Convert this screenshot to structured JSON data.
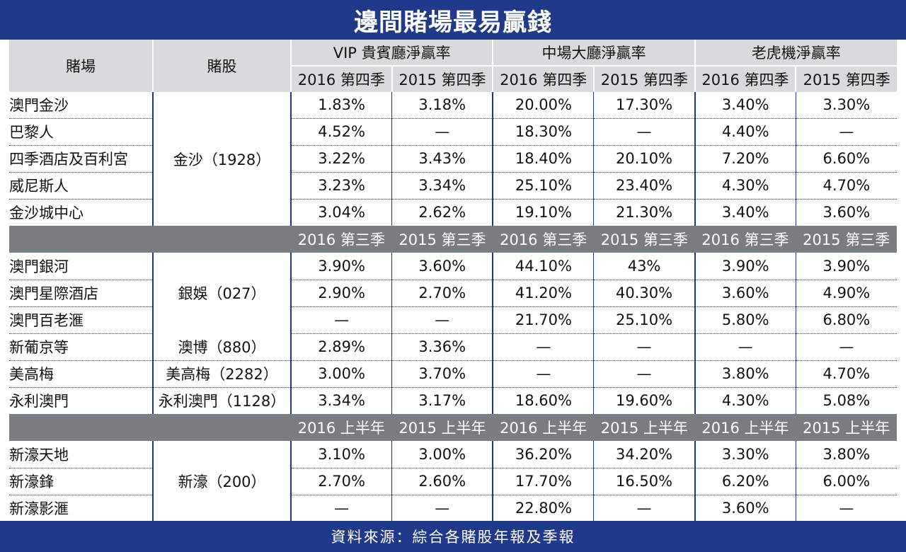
{
  "title": "邊間賭場最易贏錢",
  "footer": "資料來源：綜合各賭股年報及季報",
  "header": {
    "venue": "賭場",
    "stock": "賭股",
    "groups": [
      "VIP 貴賓廳淨贏率",
      "中場大廳淨贏率",
      "老虎機淨贏率"
    ],
    "periods": [
      "2016 第四季",
      "2015 第四季",
      "2016 第四季",
      "2015 第四季",
      "2016 第四季",
      "2015 第四季"
    ]
  },
  "sections": [
    {
      "periods": [
        "2016 第三季",
        "2015 第三季",
        "2016 第三季",
        "2015 第三季",
        "2016 第三季",
        "2015 第三季"
      ]
    },
    {
      "periods": [
        "2016 上半年",
        "2015 上半年",
        "2016 上半年",
        "2015 上半年",
        "2016 上半年",
        "2015 上半年"
      ]
    }
  ],
  "rows": [
    {
      "venue": "澳門金沙",
      "values": [
        "1.83%",
        "3.18%",
        "20.00%",
        "17.30%",
        "3.40%",
        "3.30%"
      ]
    },
    {
      "venue": "巴黎人",
      "values": [
        "4.52%",
        "—",
        "18.30%",
        "—",
        "4.40%",
        "—"
      ]
    },
    {
      "venue": "四季酒店及百利宮",
      "values": [
        "3.22%",
        "3.43%",
        "18.40%",
        "20.10%",
        "7.20%",
        "6.60%"
      ]
    },
    {
      "venue": "威尼斯人",
      "values": [
        "3.23%",
        "3.34%",
        "25.10%",
        "23.40%",
        "4.30%",
        "4.70%"
      ]
    },
    {
      "venue": "金沙城中心",
      "values": [
        "3.04%",
        "2.62%",
        "19.10%",
        "21.30%",
        "3.40%",
        "3.60%"
      ]
    },
    {
      "venue": "澳門銀河",
      "values": [
        "3.90%",
        "3.60%",
        "44.10%",
        "43%",
        "3.90%",
        "3.90%"
      ]
    },
    {
      "venue": "澳門星際酒店",
      "values": [
        "2.90%",
        "2.70%",
        "41.20%",
        "40.30%",
        "3.60%",
        "4.90%"
      ]
    },
    {
      "venue": "澳門百老滙",
      "values": [
        "—",
        "—",
        "21.70%",
        "25.10%",
        "5.80%",
        "6.80%"
      ]
    },
    {
      "venue": "新葡京等",
      "values": [
        "2.89%",
        "3.36%",
        "—",
        "—",
        "—",
        "—"
      ]
    },
    {
      "venue": "美高梅",
      "values": [
        "3.00%",
        "3.70%",
        "—",
        "—",
        "3.80%",
        "4.70%"
      ]
    },
    {
      "venue": "永利澳門",
      "values": [
        "3.34%",
        "3.17%",
        "18.60%",
        "19.60%",
        "4.30%",
        "5.08%"
      ]
    },
    {
      "venue": "新濠天地",
      "values": [
        "3.10%",
        "3.00%",
        "36.20%",
        "34.20%",
        "3.30%",
        "3.80%"
      ]
    },
    {
      "venue": "新濠鋒",
      "values": [
        "2.70%",
        "2.60%",
        "17.70%",
        "16.50%",
        "6.20%",
        "6.00%"
      ]
    },
    {
      "venue": "新濠影滙",
      "values": [
        "—",
        "—",
        "22.80%",
        "—",
        "3.60%",
        "—"
      ]
    }
  ],
  "stocks": [
    "金沙（1928）",
    "銀娛（027）",
    "澳博（880）",
    "美高梅（2282）",
    "永利澳門（1128）",
    "新濠（200）"
  ],
  "colors": {
    "header_bg": "#1f3a8a",
    "period_bar": "#797d80",
    "column_header": "#d9dadb"
  }
}
